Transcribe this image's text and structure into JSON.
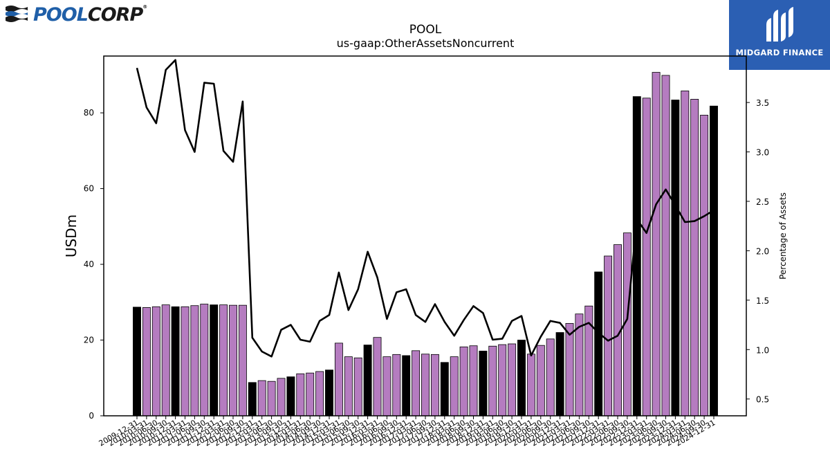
{
  "branding": {
    "logo_pool": "POOL",
    "logo_corp": "CORP",
    "logo_mark": "®",
    "badge_text": "MIDGARD FINANCE",
    "badge_color": "#2b5fb3"
  },
  "chart_data": {
    "type": "bar",
    "title": "POOL",
    "subtitle": "us-gaap:OtherAssetsNoncurrent",
    "ylabel": "USDm",
    "y2label": "Percentage of Assets",
    "ylim": [
      0,
      95
    ],
    "y2lim": [
      0.33,
      3.97
    ],
    "yticks": [
      0,
      20,
      40,
      60,
      80
    ],
    "y2ticks": [
      0.5,
      1.0,
      1.5,
      2.0,
      2.5,
      3.0,
      3.5
    ],
    "colors": {
      "bar_default": "#b57cc0",
      "bar_annual": "#000000",
      "line": "#000000"
    },
    "x_tick_labels": [
      "2009-12-31",
      "2010-03-31",
      "2010-06-30",
      "2010-09-30",
      "2010-12-31",
      "2011-03-31",
      "2011-06-30",
      "2011-09-30",
      "2011-12-31",
      "2012-03-31",
      "2012-06-30",
      "2012-09-30",
      "2012-12-31",
      "2013-03-31",
      "2013-06-30",
      "2013-09-30",
      "2013-12-31",
      "2014-03-31",
      "2014-06-30",
      "2014-09-30",
      "2014-12-31",
      "2015-03-31",
      "2015-06-30",
      "2015-09-30",
      "2015-12-31",
      "2016-03-31",
      "2016-06-30",
      "2016-09-30",
      "2016-12-31",
      "2017-03-31",
      "2017-06-30",
      "2017-09-30",
      "2017-12-31",
      "2018-03-31",
      "2018-06-30",
      "2018-09-30",
      "2018-12-31",
      "2019-03-31",
      "2019-06-30",
      "2019-09-30",
      "2019-12-31",
      "2020-03-31",
      "2020-06-30",
      "2020-09-30",
      "2020-12-31",
      "2021-03-31",
      "2021-06-30",
      "2021-09-30",
      "2021-12-31",
      "2022-03-31",
      "2022-06-30",
      "2022-09-30",
      "2022-12-31",
      "2023-03-31",
      "2023-06-30",
      "2023-09-30",
      "2023-12-31",
      "2024-03-31",
      "2024-06-30",
      "2024-09-30",
      "2024-12-31"
    ],
    "series": [
      {
        "type": "bar",
        "values": [
          28.7,
          28.6,
          28.8,
          29.3,
          28.8,
          28.8,
          29.1,
          29.5,
          29.3,
          29.3,
          29.2,
          29.2,
          8.8,
          9.3,
          9.1,
          9.9,
          10.3,
          11.1,
          11.3,
          11.7,
          12.1,
          19.2,
          15.6,
          15.3,
          18.7,
          20.7,
          15.6,
          16.2,
          15.9,
          17.2,
          16.3,
          16.2,
          14.1,
          15.6,
          18.2,
          18.5,
          17.1,
          18.4,
          18.8,
          19.0,
          20.0,
          16.3,
          18.6,
          20.3,
          22.0,
          24.4,
          26.9,
          29.0,
          38.0,
          42.2,
          45.2,
          48.3,
          84.3,
          83.9,
          90.7,
          89.9,
          83.4,
          85.8,
          83.6,
          79.4,
          81.8
        ]
      },
      {
        "type": "line",
        "values": [
          3.85,
          3.45,
          3.29,
          3.83,
          3.93,
          3.22,
          3.0,
          3.7,
          3.69,
          3.01,
          2.9,
          3.51,
          1.12,
          0.98,
          0.93,
          1.2,
          1.25,
          1.1,
          1.08,
          1.29,
          1.35,
          1.78,
          1.4,
          1.61,
          1.99,
          1.73,
          1.31,
          1.58,
          1.61,
          1.35,
          1.28,
          1.46,
          1.28,
          1.14,
          1.3,
          1.44,
          1.37,
          1.1,
          1.11,
          1.29,
          1.34,
          0.94,
          1.13,
          1.29,
          1.27,
          1.15,
          1.23,
          1.27,
          1.17,
          1.09,
          1.14,
          1.31,
          2.32,
          2.18,
          2.47,
          2.62,
          2.46,
          2.29,
          2.3,
          2.35,
          2.41
        ]
      }
    ]
  }
}
